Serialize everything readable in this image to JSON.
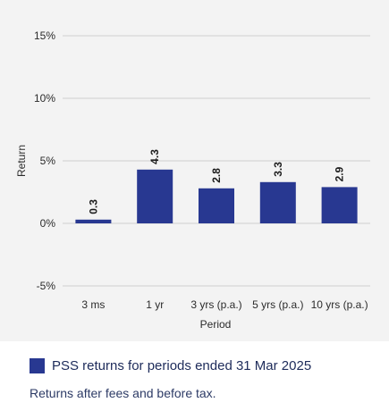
{
  "chart_data": {
    "type": "bar",
    "categories": [
      "3 ms",
      "1 yr",
      "3 yrs (p.a.)",
      "5 yrs (p.a.)",
      "10 yrs (p.a.)"
    ],
    "series": [
      {
        "name": "PSS returns for periods ended 31 Mar 2025",
        "values": [
          0.3,
          4.3,
          2.8,
          3.3,
          2.9
        ]
      }
    ],
    "data_labels": [
      "0.3",
      "4.3",
      "2.8",
      "3.3",
      "2.9"
    ],
    "xlabel": "Period",
    "ylabel": "Return",
    "ylim": [
      -5,
      15
    ],
    "yticks": [
      -5,
      0,
      5,
      10,
      15
    ],
    "ytick_labels": [
      "-5%",
      "0%",
      "5%",
      "10%",
      "15%"
    ],
    "grid": true,
    "legend_placement": "bottom-left",
    "bar_color": "#283891",
    "grid_color": "#cfcfcf"
  },
  "note": "Returns after fees and before tax."
}
